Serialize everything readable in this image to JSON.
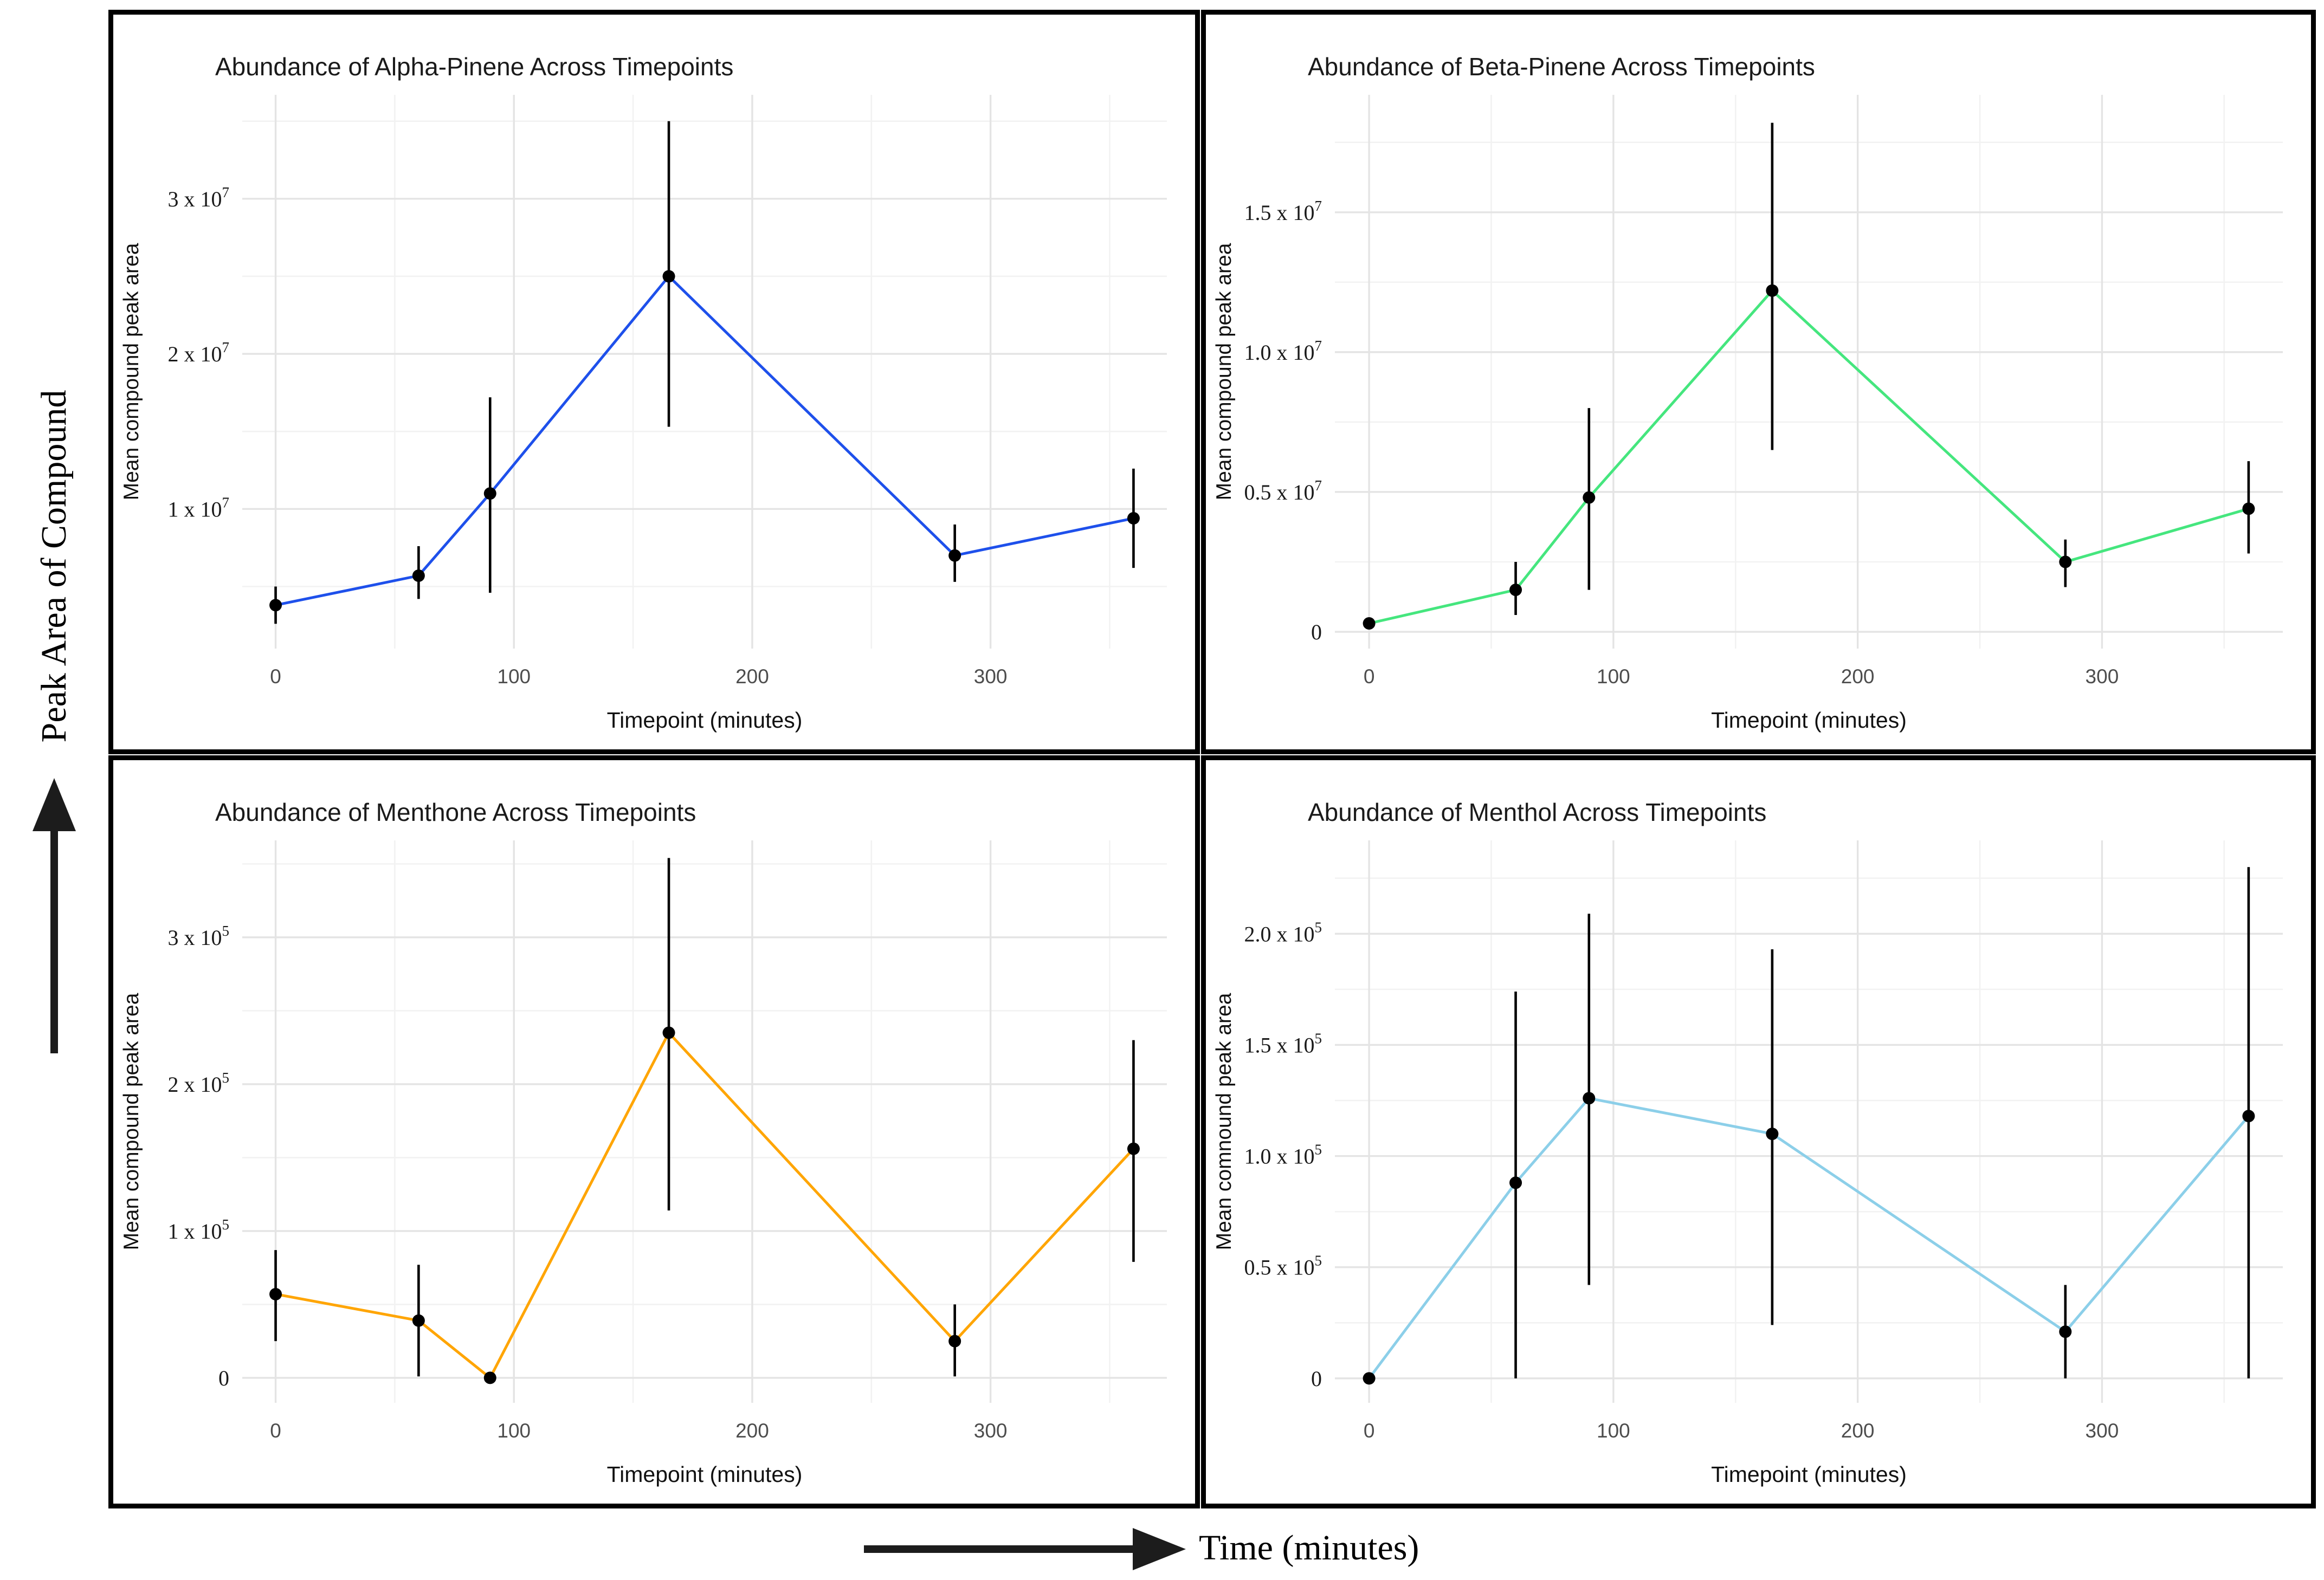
{
  "figure": {
    "outer_y_label": "Peak Area of Compound",
    "outer_x_label": "Time (minutes)",
    "background": "#ffffff",
    "panel_border_color": "#000000",
    "arrow_color": "#1c1c1c",
    "major_grid_color": "#e4e4e4",
    "minor_grid_color": "#f2f2f2",
    "x_tick_color": "#4d4d4d",
    "y_tick_color": "#1a1a1a"
  },
  "chart_data": [
    {
      "id": "alpha-pinene",
      "type": "line",
      "title": "Abundance of Alpha-Pinene Across Timepoints",
      "xlabel": "Timepoint (minutes)",
      "ylabel": "Mean compound peak area",
      "line_color": "#1e50eb",
      "point_color": "#000000",
      "unit_exponent": 7,
      "x": [
        0,
        60,
        90,
        165,
        285,
        360
      ],
      "y": [
        0.38,
        0.57,
        1.1,
        2.5,
        0.7,
        0.94
      ],
      "err_lo": [
        0.26,
        0.42,
        0.46,
        1.53,
        0.53,
        0.62
      ],
      "err_hi": [
        0.5,
        0.76,
        1.72,
        3.5,
        0.9,
        1.26
      ],
      "xlim": [
        -14,
        374
      ],
      "ylim": [
        0.1,
        3.67
      ],
      "x_major_ticks": [
        {
          "v": 0,
          "label": "0"
        },
        {
          "v": 100,
          "label": "100"
        },
        {
          "v": 200,
          "label": "200"
        },
        {
          "v": 300,
          "label": "300"
        }
      ],
      "x_minor_ticks": [
        50,
        150,
        250,
        350
      ],
      "y_major_ticks": [
        {
          "v": 1,
          "label": "1 x 10",
          "sup": "7"
        },
        {
          "v": 2,
          "label": "2 x 10",
          "sup": "7"
        },
        {
          "v": 3,
          "label": "3 x 10",
          "sup": "7"
        }
      ],
      "y_minor_ticks": [
        0.5,
        1.5,
        2.5,
        3.5
      ]
    },
    {
      "id": "beta-pinene",
      "type": "line",
      "title": "Abundance of Beta-Pinene Across Timepoints",
      "xlabel": "Timepoint (minutes)",
      "ylabel": "Mean compound peak area",
      "line_color": "#45e67e",
      "point_color": "#000000",
      "unit_exponent": 7,
      "x": [
        0,
        60,
        90,
        165,
        285,
        360
      ],
      "y": [
        0.03,
        0.15,
        0.48,
        1.22,
        0.25,
        0.44
      ],
      "err_lo": [
        null,
        0.06,
        0.15,
        0.65,
        0.16,
        0.28
      ],
      "err_hi": [
        null,
        0.25,
        0.8,
        1.82,
        0.33,
        0.61
      ],
      "xlim": [
        -14,
        374
      ],
      "ylim": [
        -0.06,
        1.92
      ],
      "x_major_ticks": [
        {
          "v": 0,
          "label": "0"
        },
        {
          "v": 100,
          "label": "100"
        },
        {
          "v": 200,
          "label": "200"
        },
        {
          "v": 300,
          "label": "300"
        }
      ],
      "x_minor_ticks": [
        50,
        150,
        250,
        350
      ],
      "y_major_ticks": [
        {
          "v": 0,
          "label": "0"
        },
        {
          "v": 0.5,
          "label": "0.5 x 10",
          "sup": "7"
        },
        {
          "v": 1.0,
          "label": "1.0 x 10",
          "sup": "7"
        },
        {
          "v": 1.5,
          "label": "1.5 x 10",
          "sup": "7"
        }
      ],
      "y_minor_ticks": [
        0.25,
        0.75,
        1.25,
        1.75
      ]
    },
    {
      "id": "menthone",
      "type": "line",
      "title": "Abundance of Menthone Across Timepoints",
      "xlabel": "Timepoint (minutes)",
      "ylabel": "Mean compound peak area",
      "line_color": "#ffa502",
      "point_color": "#000000",
      "unit_exponent": 5,
      "x": [
        0,
        60,
        90,
        165,
        285,
        360
      ],
      "y": [
        0.57,
        0.39,
        0.0,
        2.35,
        0.25,
        1.56
      ],
      "err_lo": [
        0.25,
        0.01,
        null,
        1.14,
        0.01,
        0.79
      ],
      "err_hi": [
        0.87,
        0.77,
        null,
        3.54,
        0.5,
        2.3
      ],
      "xlim": [
        -14,
        374
      ],
      "ylim": [
        -0.17,
        3.66
      ],
      "x_major_ticks": [
        {
          "v": 0,
          "label": "0"
        },
        {
          "v": 100,
          "label": "100"
        },
        {
          "v": 200,
          "label": "200"
        },
        {
          "v": 300,
          "label": "300"
        }
      ],
      "x_minor_ticks": [
        50,
        150,
        250,
        350
      ],
      "y_major_ticks": [
        {
          "v": 0,
          "label": "0"
        },
        {
          "v": 1,
          "label": "1 x 10",
          "sup": "5"
        },
        {
          "v": 2,
          "label": "2 x 10",
          "sup": "5"
        },
        {
          "v": 3,
          "label": "3 x 10",
          "sup": "5"
        }
      ],
      "y_minor_ticks": [
        0.5,
        1.5,
        2.5,
        3.5
      ]
    },
    {
      "id": "menthol",
      "type": "line",
      "title": "Abundance of Menthol Across Timepoints",
      "xlabel": "Timepoint (minutes)",
      "ylabel": "Mean comnound peak area",
      "line_color": "#8ccfe9",
      "point_color": "#000000",
      "unit_exponent": 5,
      "x": [
        0,
        60,
        90,
        165,
        285,
        360
      ],
      "y": [
        0.0,
        0.88,
        1.26,
        1.1,
        0.21,
        1.18
      ],
      "err_lo": [
        null,
        0.0,
        0.42,
        0.24,
        0.0,
        0.0
      ],
      "err_hi": [
        null,
        1.74,
        2.09,
        1.93,
        0.42,
        2.3
      ],
      "xlim": [
        -14,
        374
      ],
      "ylim": [
        -0.11,
        2.42
      ],
      "x_major_ticks": [
        {
          "v": 0,
          "label": "0"
        },
        {
          "v": 100,
          "label": "100"
        },
        {
          "v": 200,
          "label": "200"
        },
        {
          "v": 300,
          "label": "300"
        }
      ],
      "x_minor_ticks": [
        50,
        150,
        250,
        350
      ],
      "y_major_ticks": [
        {
          "v": 0,
          "label": "0"
        },
        {
          "v": 0.5,
          "label": "0.5 x 10",
          "sup": "5"
        },
        {
          "v": 1.0,
          "label": "1.0 x 10",
          "sup": "5"
        },
        {
          "v": 1.5,
          "label": "1.5 x 10",
          "sup": "5"
        },
        {
          "v": 2.0,
          "label": "2.0 x 10",
          "sup": "5"
        }
      ],
      "y_minor_ticks": [
        0.25,
        0.75,
        1.25,
        1.75,
        2.25
      ]
    }
  ]
}
